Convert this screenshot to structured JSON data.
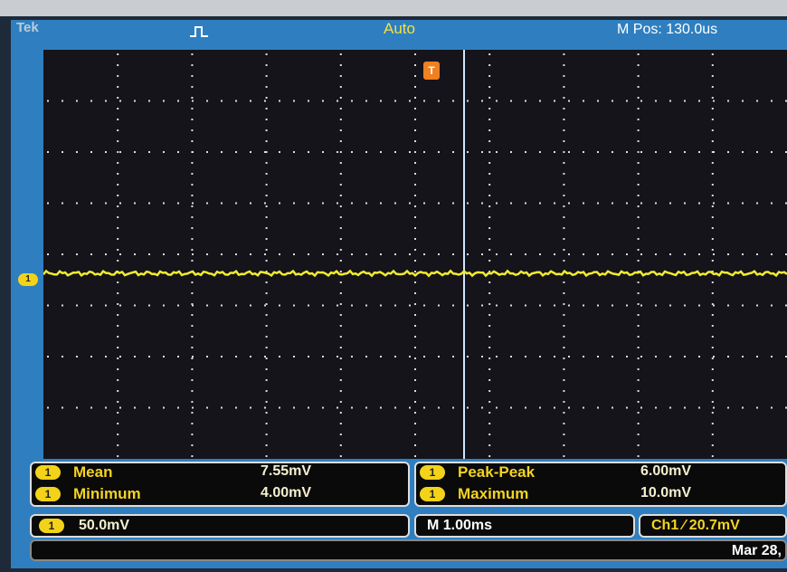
{
  "header": {
    "brand": "Tek",
    "trigger_mode": "Auto",
    "position": "M Pos: 130.0us"
  },
  "markers": {
    "trigger": "T",
    "channel": "1"
  },
  "measurements": [
    {
      "badge": "1",
      "label": "Mean",
      "value": "7.55mV"
    },
    {
      "badge": "1",
      "label": "Minimum",
      "value": "4.00mV"
    },
    {
      "badge": "1",
      "label": "Peak-Peak",
      "value": "6.00mV"
    },
    {
      "badge": "1",
      "label": "Maximum",
      "value": "10.0mV"
    }
  ],
  "status": {
    "channel_badge": "1",
    "channel_scale": "50.0mV",
    "timebase": "M 1.00ms",
    "trigger": "Ch1 ⁄ 20.7mV",
    "date": "Mar 28,"
  }
}
